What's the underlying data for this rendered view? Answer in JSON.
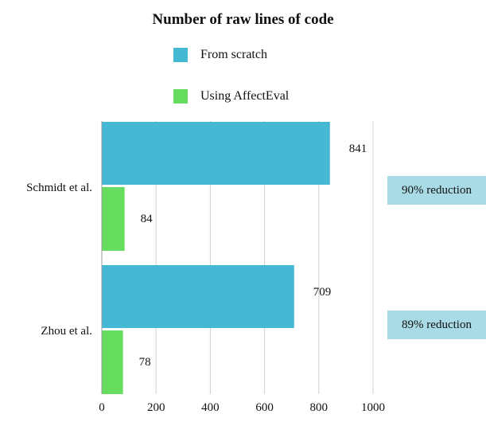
{
  "chart_data": {
    "type": "bar",
    "orientation": "horizontal",
    "title": "Number of raw lines of code",
    "categories": [
      "Schmidt et al.",
      "Zhou et al."
    ],
    "series": [
      {
        "name": "From scratch",
        "values": [
          841,
          709
        ],
        "color": "#45b8d4"
      },
      {
        "name": "Using AffectEval",
        "values": [
          84,
          78
        ],
        "color": "#66dd5e"
      }
    ],
    "xlim": [
      0,
      1000
    ],
    "xticks": [
      0,
      200,
      400,
      600,
      800,
      1000
    ],
    "grid": true,
    "legend_position": "top",
    "annotations": [
      {
        "category": "Schmidt et al.",
        "text": "90% reduction"
      },
      {
        "category": "Zhou et al.",
        "text": "89% reduction"
      }
    ],
    "badge_color": "#a9dbe6"
  }
}
